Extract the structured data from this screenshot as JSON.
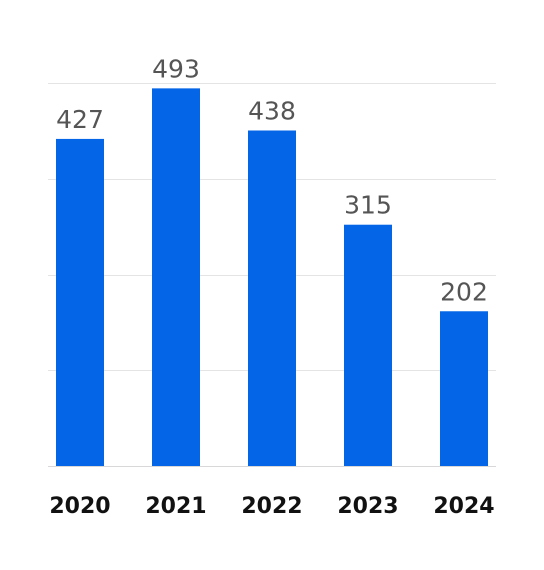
{
  "chart_data": {
    "type": "bar",
    "categories": [
      "2020",
      "2021",
      "2022",
      "2023",
      "2024"
    ],
    "values": [
      427,
      493,
      438,
      315,
      202
    ],
    "title": "",
    "xlabel": "",
    "ylabel": "",
    "ylim": [
      0,
      500
    ],
    "grid": true,
    "data_labels": true,
    "bar_color": "#0466e6"
  }
}
